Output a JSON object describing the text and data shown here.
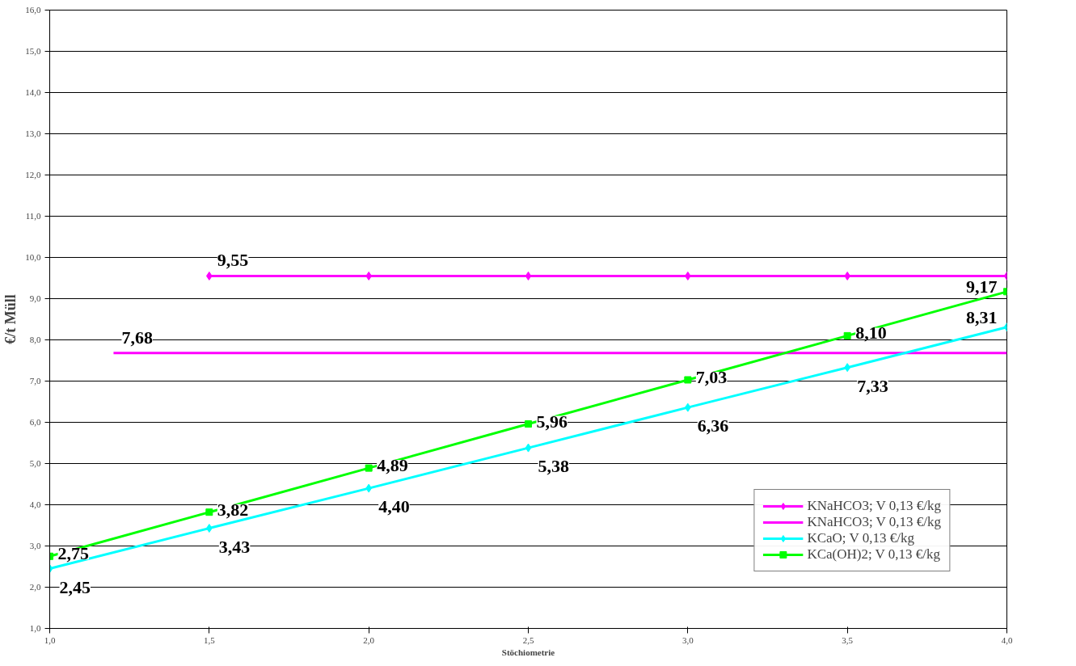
{
  "chart_data": {
    "type": "line",
    "xlabel": "Stöchiometrie",
    "ylabel": "€/t Müll",
    "xlim": [
      1.0,
      4.0
    ],
    "ylim": [
      1.0,
      16.0
    ],
    "xticks": [
      {
        "value": 1.0,
        "label": "1,0"
      },
      {
        "value": 1.5,
        "label": "1,5"
      },
      {
        "value": 2.0,
        "label": "2,0"
      },
      {
        "value": 2.5,
        "label": "2,5"
      },
      {
        "value": 3.0,
        "label": "3,0"
      },
      {
        "value": 3.5,
        "label": "3,5"
      },
      {
        "value": 4.0,
        "label": "4,0"
      }
    ],
    "yticks": [
      {
        "value": 1,
        "label": "1,0"
      },
      {
        "value": 2,
        "label": "2,0"
      },
      {
        "value": 3,
        "label": "3,0"
      },
      {
        "value": 4,
        "label": "4,0"
      },
      {
        "value": 5,
        "label": "5,0"
      },
      {
        "value": 6,
        "label": "6,0"
      },
      {
        "value": 7,
        "label": "7,0"
      },
      {
        "value": 8,
        "label": "8,0"
      },
      {
        "value": 9,
        "label": "9,0"
      },
      {
        "value": 10,
        "label": "10,0"
      },
      {
        "value": 11,
        "label": "11,0"
      },
      {
        "value": 12,
        "label": "12,0"
      },
      {
        "value": 13,
        "label": "13,0"
      },
      {
        "value": 14,
        "label": "14,0"
      },
      {
        "value": 15,
        "label": "15,0"
      },
      {
        "value": 16,
        "label": "16,0"
      }
    ],
    "grid": "y",
    "legend": "bottom right",
    "line_style": "solid",
    "series": [
      {
        "name": "KNaHCO3; V 0,13 €/kg",
        "color": "#ff00ff",
        "marker": "diamond",
        "x": [
          1.5,
          2.0,
          2.5,
          3.0,
          3.5,
          4.0
        ],
        "values": [
          9.55,
          9.55,
          9.55,
          9.55,
          9.55,
          9.55
        ],
        "value_labels": [
          "9,55",
          null,
          null,
          null,
          null,
          null
        ]
      },
      {
        "name": "KNaHCO3; V 0,13 €/kg",
        "color": "#ff00ff",
        "marker": "none",
        "x": [
          1.2,
          4.0
        ],
        "values": [
          7.68,
          7.68
        ],
        "value_labels": [
          "7,68",
          null
        ]
      },
      {
        "name": "KCaO; V 0,13 €/kg",
        "color": "#00ffff",
        "marker": "diamond",
        "x": [
          1.0,
          1.5,
          2.0,
          2.5,
          3.0,
          3.5,
          4.0
        ],
        "values": [
          2.45,
          3.43,
          4.4,
          5.38,
          6.36,
          7.33,
          8.31
        ],
        "value_labels": [
          "2,45",
          "3,43",
          "4,40",
          "5,38",
          "6,36",
          "7,33",
          "8,31"
        ]
      },
      {
        "name": "KCa(OH)2; V 0,13 €/kg",
        "color": "#00ff00",
        "marker": "square",
        "x": [
          1.0,
          1.5,
          2.0,
          2.5,
          3.0,
          3.5,
          4.0
        ],
        "values": [
          2.75,
          3.82,
          4.89,
          5.96,
          7.03,
          8.1,
          9.17
        ],
        "value_labels": [
          "2,75",
          "3,82",
          "4,89",
          "5,96",
          "7,03",
          "8,10",
          "9,17"
        ]
      }
    ]
  }
}
